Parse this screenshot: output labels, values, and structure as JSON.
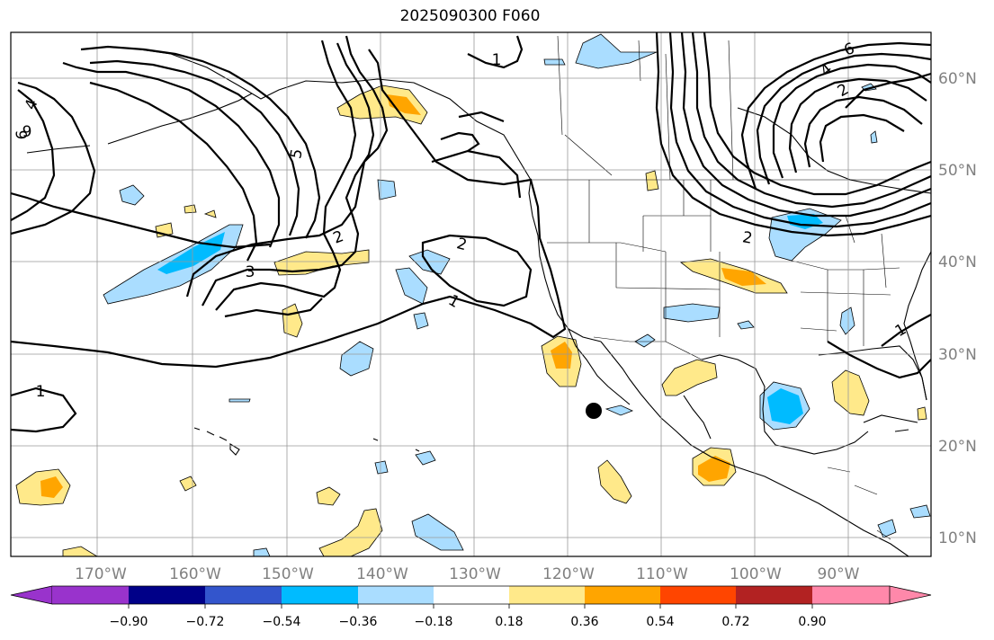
{
  "title": "2025090300 F060",
  "lat_labels": [
    "60°N",
    "50°N",
    "40°N",
    "30°N",
    "20°N",
    "10°N"
  ],
  "lon_labels": [
    "170°W",
    "160°W",
    "150°W",
    "140°W",
    "130°W",
    "120°W",
    "110°W",
    "100°W",
    "90°W"
  ],
  "contour_labels": [
    "1",
    "2",
    "3",
    "5",
    "4",
    "6",
    "9",
    "2",
    "1",
    "2",
    "1",
    "2",
    "4",
    "6",
    "1"
  ],
  "colorbar": {
    "ticks": [
      "−0.90",
      "−0.72",
      "−0.54",
      "−0.36",
      "−0.18",
      "0.18",
      "0.36",
      "0.54",
      "0.72",
      "0.90"
    ],
    "colors": [
      "#9933cc",
      "#000088",
      "#3355cc",
      "#00bbff",
      "#aaddff",
      "#ffffff",
      "#ffe98a",
      "#ffa500",
      "#ff4500",
      "#b22222",
      "#ff88aa"
    ]
  },
  "colors": {
    "neg_light": "#aaddff",
    "neg_strong": "#00bbff",
    "pos_light": "#ffe98a",
    "pos_strong": "#ffa500",
    "grid": "#999999",
    "label": "#808080"
  },
  "marker": "black-dot"
}
